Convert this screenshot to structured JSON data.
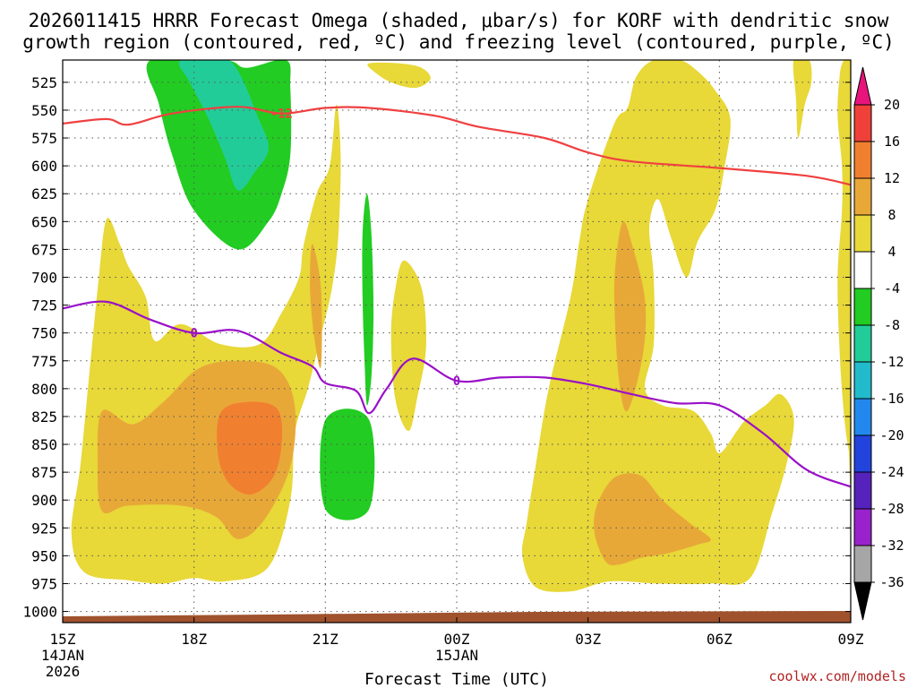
{
  "chart_data": {
    "type": "time-height contour",
    "title_line1": "2026011415 HRRR Forecast Omega (shaded, μbar/s) for KORF with dendritic snow",
    "title_line2": "growth region (contoured, red, ºC) and freezing level (contoured, purple, ºC)",
    "xlabel": "Forecast Time (UTC)",
    "credit": "coolwx.com/models",
    "x_range_hours": [
      15,
      33
    ],
    "y_range_hpa": [
      1010,
      505
    ],
    "y_ticks": [
      "525",
      "550",
      "575",
      "600",
      "625",
      "650",
      "675",
      "700",
      "725",
      "750",
      "775",
      "800",
      "825",
      "850",
      "875",
      "900",
      "925",
      "950",
      "975",
      "1000"
    ],
    "x_ticks": [
      {
        "h": 15,
        "label": "15Z",
        "sub1": "14JAN",
        "sub2": "2026"
      },
      {
        "h": 18,
        "label": "18Z",
        "sub1": "",
        "sub2": ""
      },
      {
        "h": 21,
        "label": "21Z",
        "sub1": "",
        "sub2": ""
      },
      {
        "h": 24,
        "label": "00Z",
        "sub1": "15JAN",
        "sub2": ""
      },
      {
        "h": 27,
        "label": "03Z",
        "sub1": "",
        "sub2": ""
      },
      {
        "h": 30,
        "label": "06Z",
        "sub1": "",
        "sub2": ""
      },
      {
        "h": 33,
        "label": "09Z",
        "sub1": "",
        "sub2": ""
      }
    ],
    "colorbar": {
      "levels": [
        "20",
        "16",
        "12",
        "8",
        "4",
        "-4",
        "-8",
        "-12",
        "-16",
        "-20",
        "-24",
        "-28",
        "-32",
        "-36"
      ],
      "colors": [
        "#e8147c",
        "#f0403a",
        "#f08030",
        "#e8a838",
        "#e8d838",
        "#ffffff",
        "#22cc22",
        "#22cc99",
        "#22bbcc",
        "#2288ee",
        "#2244dd",
        "#5522bb",
        "#9922cc",
        "#a6a6a6",
        "#000000"
      ]
    },
    "freezing_level": {
      "label": "0",
      "color": "#9a10c8",
      "points": [
        [
          15,
          728
        ],
        [
          16,
          722
        ],
        [
          17,
          738
        ],
        [
          18,
          750
        ],
        [
          19,
          748
        ],
        [
          20,
          768
        ],
        [
          20.7,
          780
        ],
        [
          21,
          795
        ],
        [
          21.7,
          802
        ],
        [
          22,
          822
        ],
        [
          22.4,
          800
        ],
        [
          23,
          773
        ],
        [
          24,
          793
        ],
        [
          25,
          790
        ],
        [
          26,
          790
        ],
        [
          27,
          796
        ],
        [
          28,
          805
        ],
        [
          29,
          813
        ],
        [
          30,
          815
        ],
        [
          31,
          840
        ],
        [
          32,
          873
        ],
        [
          33,
          888
        ]
      ]
    },
    "dgz_isotherm": {
      "label": "-12",
      "color": "#f04040",
      "points": [
        [
          15,
          562
        ],
        [
          16,
          558
        ],
        [
          16.5,
          563
        ],
        [
          17.5,
          553
        ],
        [
          19,
          547
        ],
        [
          20,
          553
        ],
        [
          21,
          548
        ],
        [
          22,
          548
        ],
        [
          23.5,
          555
        ],
        [
          24.5,
          565
        ],
        [
          26,
          575
        ],
        [
          27,
          588
        ],
        [
          28,
          596
        ],
        [
          30,
          602
        ],
        [
          32,
          609
        ],
        [
          33,
          617
        ]
      ]
    },
    "omega_regions": [
      {
        "name": "omega-positive-4-8",
        "value": "4",
        "fill": "#e8d838",
        "polys": [
          [
            [
              16,
              648
            ],
            [
              16.3,
              670
            ],
            [
              16.5,
              690
            ],
            [
              16.9,
              718
            ],
            [
              17.1,
              757
            ],
            [
              17.7,
              742
            ],
            [
              18.6,
              760
            ],
            [
              19.5,
              760
            ],
            [
              20.0,
              732
            ],
            [
              20.4,
              700
            ],
            [
              20.5,
              672
            ],
            [
              20.8,
              625
            ],
            [
              21.1,
              600
            ],
            [
              21.25,
              545
            ],
            [
              21.35,
              590
            ],
            [
              21.3,
              660
            ],
            [
              21.15,
              710
            ],
            [
              20.85,
              760
            ],
            [
              20.6,
              800
            ],
            [
              20.3,
              840
            ],
            [
              20.2,
              900
            ],
            [
              19.7,
              960
            ],
            [
              18.7,
              973
            ],
            [
              18,
              970
            ],
            [
              17.3,
              975
            ],
            [
              16.5,
              972
            ],
            [
              15.5,
              965
            ],
            [
              15.2,
              930
            ],
            [
              15.4,
              870
            ],
            [
              15.6,
              790
            ],
            [
              15.8,
              710
            ]
          ],
          [
            [
              22.8,
              685
            ],
            [
              23.2,
              710
            ],
            [
              23.3,
              762
            ],
            [
              23.1,
              808
            ],
            [
              22.9,
              838
            ],
            [
              22.6,
              810
            ],
            [
              22.5,
              752
            ],
            [
              22.6,
              710
            ]
          ],
          [
            [
              22.0,
              508
            ],
            [
              22.7,
              508
            ],
            [
              23.2,
              512
            ],
            [
              23.4,
              522
            ],
            [
              23.05,
              530
            ],
            [
              22.5,
              525
            ],
            [
              22.1,
              515
            ]
          ],
          [
            [
              27.0,
              630
            ],
            [
              27.6,
              562
            ],
            [
              27.9,
              548
            ],
            [
              28.1,
              520
            ],
            [
              28.5,
              505
            ],
            [
              29.1,
              505
            ],
            [
              29.5,
              515
            ],
            [
              29.9,
              532
            ],
            [
              30.25,
              558
            ],
            [
              30.1,
              605
            ],
            [
              29.9,
              640
            ],
            [
              29.5,
              668
            ],
            [
              29.25,
              700
            ],
            [
              28.9,
              665
            ],
            [
              28.6,
              630
            ],
            [
              28.4,
              655
            ],
            [
              28.5,
              700
            ],
            [
              28.5,
              760
            ],
            [
              28.3,
              800
            ],
            [
              28.7,
              815
            ],
            [
              29.4,
              820
            ],
            [
              29.8,
              840
            ],
            [
              30.0,
              858
            ],
            [
              30.4,
              838
            ],
            [
              30.6,
              828
            ],
            [
              31.05,
              815
            ],
            [
              31.4,
              805
            ],
            [
              31.7,
              826
            ],
            [
              31.55,
              865
            ],
            [
              31.2,
              912
            ],
            [
              30.7,
              970
            ],
            [
              29.8,
              975
            ],
            [
              28.6,
              975
            ],
            [
              27.5,
              973
            ],
            [
              26.6,
              982
            ],
            [
              25.8,
              978
            ],
            [
              25.5,
              950
            ],
            [
              25.6,
              920
            ],
            [
              25.8,
              870
            ],
            [
              26.1,
              800
            ],
            [
              26.6,
              718
            ],
            [
              26.8,
              668
            ]
          ],
          [
            [
              31.7,
              505
            ],
            [
              32.05,
              505
            ],
            [
              32.1,
              525
            ],
            [
              31.95,
              545
            ],
            [
              31.8,
              575
            ],
            [
              31.75,
              540
            ]
          ],
          [
            [
              32.7,
              555
            ],
            [
              32.75,
              518
            ],
            [
              32.85,
              505
            ],
            [
              33.0,
              505
            ],
            [
              33.0,
              860
            ],
            [
              32.95,
              855
            ],
            [
              32.85,
              825
            ],
            [
              32.75,
              770
            ],
            [
              32.7,
              700
            ],
            [
              32.8,
              640
            ],
            [
              32.8,
              600
            ]
          ]
        ]
      },
      {
        "name": "omega-positive-8-12",
        "value": "8",
        "fill": "#e8a838",
        "polys": [
          [
            [
              15.9,
              820
            ],
            [
              16.6,
              832
            ],
            [
              17.3,
              812
            ],
            [
              18.1,
              782
            ],
            [
              19.0,
              775
            ],
            [
              19.9,
              782
            ],
            [
              20.3,
              815
            ],
            [
              20.2,
              870
            ],
            [
              19.6,
              918
            ],
            [
              19.0,
              935
            ],
            [
              18.5,
              915
            ],
            [
              17.7,
              905
            ],
            [
              16.5,
              905
            ],
            [
              15.9,
              910
            ],
            [
              15.8,
              868
            ]
          ],
          [
            [
              20.7,
              670
            ],
            [
              20.9,
              710
            ],
            [
              20.9,
              780
            ],
            [
              20.75,
              755
            ],
            [
              20.65,
              710
            ]
          ],
          [
            [
              27.8,
              650
            ],
            [
              28.0,
              670
            ],
            [
              28.3,
              720
            ],
            [
              28.25,
              770
            ],
            [
              27.9,
              820
            ],
            [
              27.7,
              790
            ],
            [
              27.6,
              720
            ],
            [
              27.65,
              680
            ]
          ],
          [
            [
              27.2,
              905
            ],
            [
              27.6,
              880
            ],
            [
              28.2,
              878
            ],
            [
              28.7,
              900
            ],
            [
              29.3,
              920
            ],
            [
              29.8,
              935
            ],
            [
              29.5,
              940
            ],
            [
              28.8,
              948
            ],
            [
              28.2,
              952
            ],
            [
              27.7,
              958
            ],
            [
              27.4,
              955
            ],
            [
              27.15,
              930
            ]
          ]
        ]
      },
      {
        "name": "omega-positive-12-16",
        "value": "12",
        "fill": "#f08030",
        "polys": [
          [
            [
              18.6,
              822
            ],
            [
              19.2,
              812
            ],
            [
              19.9,
              818
            ],
            [
              20.0,
              850
            ],
            [
              19.8,
              880
            ],
            [
              19.3,
              895
            ],
            [
              18.8,
              885
            ],
            [
              18.55,
              860
            ]
          ]
        ]
      },
      {
        "name": "omega-negative-4-8",
        "value": "-4",
        "fill": "#22cc22",
        "polys": [
          [
            [
              17.0,
              505
            ],
            [
              18.7,
              505
            ],
            [
              19.2,
              512
            ],
            [
              20.1,
              505
            ],
            [
              20.2,
              530
            ],
            [
              20.2,
              590
            ],
            [
              20.0,
              625
            ],
            [
              19.7,
              650
            ],
            [
              19.0,
              675
            ],
            [
              18.0,
              640
            ],
            [
              17.5,
              590
            ],
            [
              17.2,
              545
            ]
          ],
          [
            [
              21.95,
              625
            ],
            [
              22.05,
              660
            ],
            [
              22.1,
              730
            ],
            [
              22.05,
              790
            ],
            [
              21.95,
              815
            ],
            [
              21.9,
              780
            ],
            [
              21.85,
              720
            ],
            [
              21.85,
              660
            ]
          ],
          [
            [
              21.0,
              828
            ],
            [
              22.0,
              828
            ],
            [
              22.0,
              908
            ],
            [
              21.0,
              908
            ]
          ]
        ]
      },
      {
        "name": "omega-negative-8-12",
        "value": "-8",
        "fill": "#22cc99",
        "polys": [
          [
            [
              17.7,
              505
            ],
            [
              18.8,
              505
            ],
            [
              19.5,
              560
            ],
            [
              19.7,
              585
            ],
            [
              19.4,
              605
            ],
            [
              19.0,
              622
            ],
            [
              18.7,
              592
            ],
            [
              18.3,
              555
            ],
            [
              17.9,
              525
            ]
          ]
        ]
      }
    ]
  }
}
